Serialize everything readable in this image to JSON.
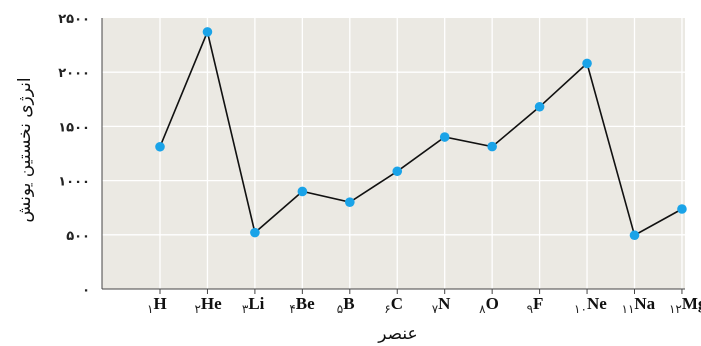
{
  "chart_data": {
    "type": "line",
    "xlabel": "عنصر",
    "ylabel": "انرژی نخستین یونش",
    "ylim": [
      0,
      2500
    ],
    "yticks": [
      {
        "value": 0,
        "label": "۰"
      },
      {
        "value": 500,
        "label": "۵۰۰"
      },
      {
        "value": 1000,
        "label": "۱۰۰۰"
      },
      {
        "value": 1500,
        "label": "۱۵۰۰"
      },
      {
        "value": 2000,
        "label": "۲۰۰۰"
      },
      {
        "value": 2500,
        "label": "۲۵۰۰"
      }
    ],
    "categories": [
      {
        "num": "۱",
        "symbol": "H"
      },
      {
        "num": "۲",
        "symbol": "He"
      },
      {
        "num": "۳",
        "symbol": "Li"
      },
      {
        "num": "۴",
        "symbol": "Be"
      },
      {
        "num": "۵",
        "symbol": "B"
      },
      {
        "num": "۶",
        "symbol": "C"
      },
      {
        "num": "۷",
        "symbol": "N"
      },
      {
        "num": "۸",
        "symbol": "O"
      },
      {
        "num": "۹",
        "symbol": "F"
      },
      {
        "num": "۱۰",
        "symbol": "Ne"
      },
      {
        "num": "۱۱",
        "symbol": "Na"
      },
      {
        "num": "۱۲",
        "symbol": "Mg"
      }
    ],
    "values": [
      1312,
      2372,
      520,
      900,
      801,
      1086,
      1402,
      1314,
      1681,
      2081,
      496,
      738
    ],
    "grid": true,
    "colors": {
      "background": "#ebe9e3",
      "grid": "#ffffff",
      "line": "#111111",
      "marker": "#1aa3e8",
      "axis": "#444444"
    }
  }
}
